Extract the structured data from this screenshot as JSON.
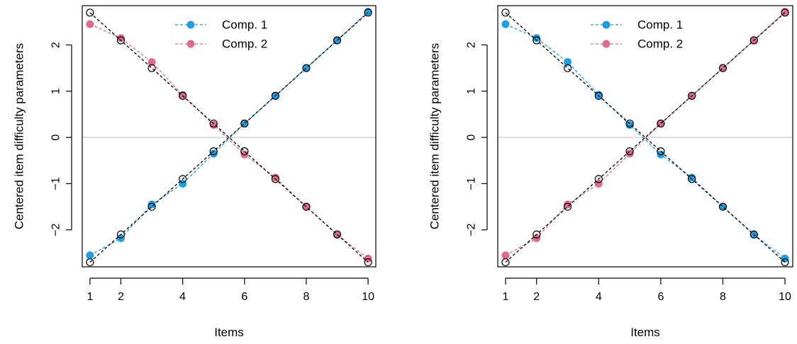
{
  "colors": {
    "comp1": "#1f9ee1",
    "comp2": "#df6a8a",
    "truth": "#000000",
    "zero_line": "#c8c8c8"
  },
  "chart_data": [
    {
      "type": "line",
      "title": "",
      "xlabel": "Items",
      "ylabel": "Centered item difficulty parameters",
      "xlim": [
        0.75,
        10.25
      ],
      "ylim": [
        -2.8,
        2.85
      ],
      "x_ticks": [
        1,
        2,
        4,
        6,
        8,
        10
      ],
      "y_ticks": [
        -2,
        -1,
        0,
        1,
        2
      ],
      "y_tick_labels": [
        "−2",
        "−1",
        "0",
        "1",
        "2"
      ],
      "reference_line_y": 0,
      "legend_position": "top-center",
      "x": [
        1,
        2,
        3,
        4,
        5,
        6,
        7,
        8,
        9,
        10
      ],
      "series": [
        {
          "name": "Comp. 1",
          "color": "comp1",
          "values": [
            -2.55,
            -2.18,
            -1.45,
            -1.0,
            -0.35,
            0.3,
            0.9,
            1.5,
            2.1,
            2.72
          ]
        },
        {
          "name": "Comp. 2",
          "color": "comp2",
          "values": [
            2.45,
            2.15,
            1.63,
            0.92,
            0.27,
            -0.37,
            -0.87,
            -1.5,
            -2.1,
            -2.62
          ]
        },
        {
          "name": "",
          "color": "truth",
          "values": [
            2.7,
            2.1,
            1.5,
            0.9,
            0.3,
            -0.3,
            -0.9,
            -1.5,
            -2.1,
            -2.7
          ]
        },
        {
          "name": "",
          "color": "truth",
          "values": [
            -2.7,
            -2.1,
            -1.5,
            -0.9,
            -0.3,
            0.3,
            0.9,
            1.5,
            2.1,
            2.7
          ]
        }
      ]
    },
    {
      "type": "line",
      "title": "",
      "xlabel": "Items",
      "ylabel": "Centered item difficulty parameters",
      "xlim": [
        0.75,
        10.25
      ],
      "ylim": [
        -2.8,
        2.85
      ],
      "x_ticks": [
        1,
        2,
        4,
        6,
        8,
        10
      ],
      "y_ticks": [
        -2,
        -1,
        0,
        1,
        2
      ],
      "y_tick_labels": [
        "−2",
        "−1",
        "0",
        "1",
        "2"
      ],
      "reference_line_y": 0,
      "legend_position": "top-center",
      "x": [
        1,
        2,
        3,
        4,
        5,
        6,
        7,
        8,
        9,
        10
      ],
      "series": [
        {
          "name": "Comp. 1",
          "color": "comp1",
          "values": [
            2.45,
            2.15,
            1.63,
            0.92,
            0.27,
            -0.37,
            -0.87,
            -1.5,
            -2.1,
            -2.62
          ]
        },
        {
          "name": "Comp. 2",
          "color": "comp2",
          "values": [
            -2.55,
            -2.18,
            -1.45,
            -1.0,
            -0.35,
            0.3,
            0.9,
            1.5,
            2.1,
            2.72
          ]
        },
        {
          "name": "",
          "color": "truth",
          "values": [
            2.7,
            2.1,
            1.5,
            0.9,
            0.3,
            -0.3,
            -0.9,
            -1.5,
            -2.1,
            -2.7
          ]
        },
        {
          "name": "",
          "color": "truth",
          "values": [
            -2.7,
            -2.1,
            -1.5,
            -0.9,
            -0.3,
            0.3,
            0.9,
            1.5,
            2.1,
            2.7
          ]
        }
      ]
    }
  ]
}
